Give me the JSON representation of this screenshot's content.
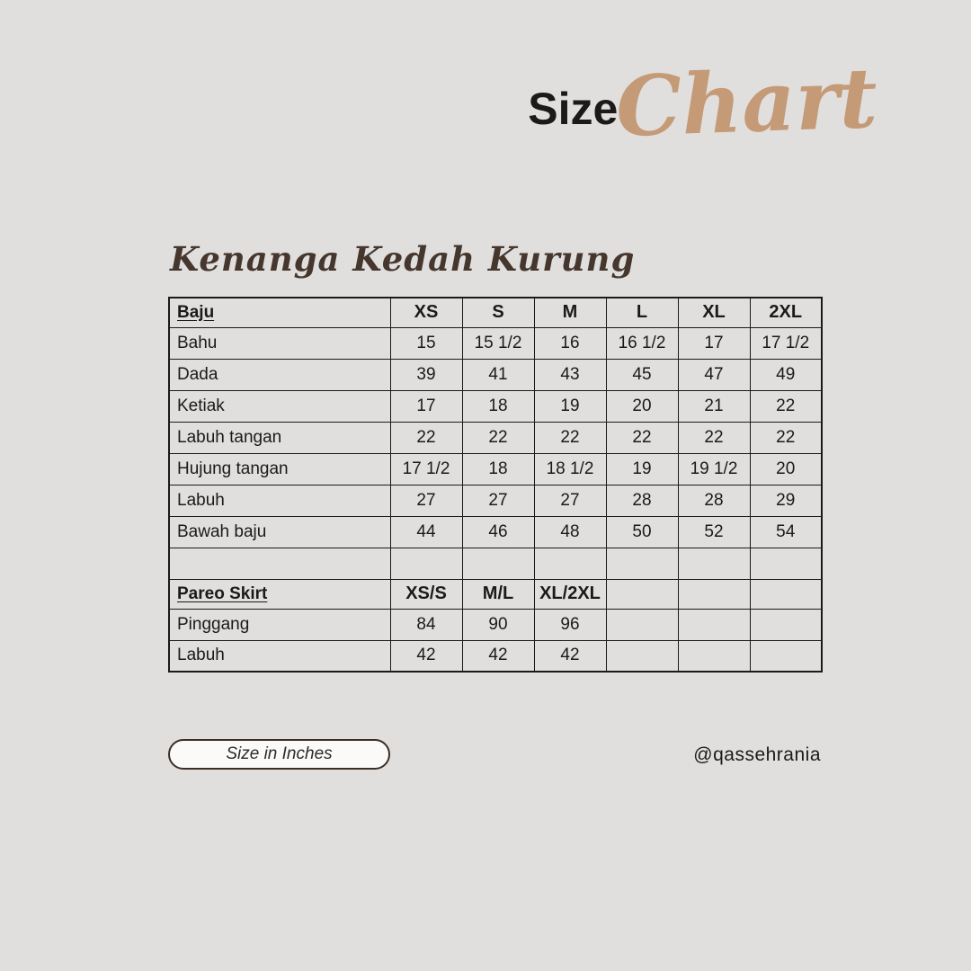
{
  "colors": {
    "background": "#e0dfdd",
    "accent_tan": "#c49a77",
    "script_brown": "#46372e",
    "text_ink": "#1b1a19",
    "pill_background": "#fbfaf8",
    "pill_border": "#3b2e26"
  },
  "brand_title": {
    "sans_part": "Size",
    "script_part": "Chart"
  },
  "product_title": "Kenanga Kedah Kurung",
  "size_table": {
    "sections": [
      {
        "name": "Baju",
        "size_headers": [
          "XS",
          "S",
          "M",
          "L",
          "XL",
          "2XL"
        ],
        "rows": [
          {
            "label": "Bahu",
            "values": [
              "15",
              "15 1/2",
              "16",
              "16 1/2",
              "17",
              "17 1/2"
            ]
          },
          {
            "label": "Dada",
            "values": [
              "39",
              "41",
              "43",
              "45",
              "47",
              "49"
            ]
          },
          {
            "label": "Ketiak",
            "values": [
              "17",
              "18",
              "19",
              "20",
              "21",
              "22"
            ]
          },
          {
            "label": "Labuh tangan",
            "values": [
              "22",
              "22",
              "22",
              "22",
              "22",
              "22"
            ]
          },
          {
            "label": "Hujung tangan",
            "values": [
              "17 1/2",
              "18",
              "18 1/2",
              "19",
              "19 1/2",
              "20"
            ]
          },
          {
            "label": "Labuh",
            "values": [
              "27",
              "27",
              "27",
              "28",
              "28",
              "29"
            ]
          },
          {
            "label": "Bawah baju",
            "values": [
              "44",
              "46",
              "48",
              "50",
              "52",
              "54"
            ]
          }
        ]
      },
      {
        "name": "Pareo Skirt",
        "size_headers": [
          "XS/S",
          "M/L",
          "XL/2XL",
          "",
          "",
          ""
        ],
        "rows": [
          {
            "label": "Pinggang",
            "values": [
              "84",
              "90",
              "96",
              "",
              "",
              ""
            ]
          },
          {
            "label": "Labuh",
            "values": [
              "42",
              "42",
              "42",
              "",
              "",
              ""
            ]
          }
        ]
      }
    ],
    "spacer_between_sections": true
  },
  "footer": {
    "unit_note": "Size in Inches",
    "handle": "@qassehrania"
  }
}
